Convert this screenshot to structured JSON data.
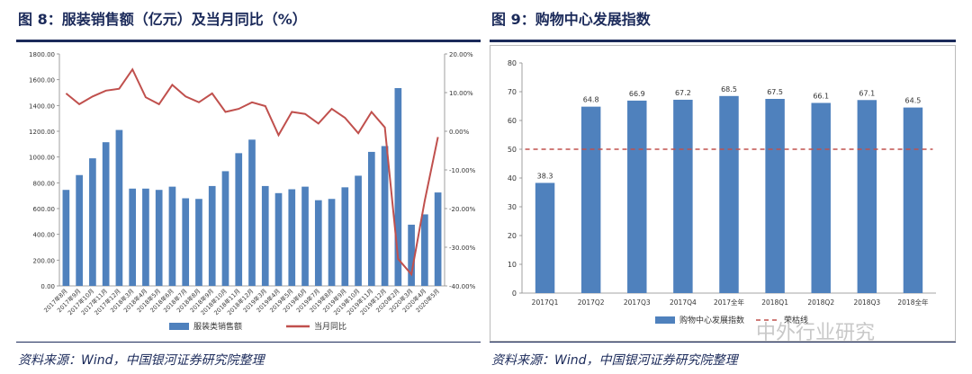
{
  "left": {
    "title": "图 8：服装销售额（亿元）及当月同比（%）",
    "source": "资料来源：Wind，中国银河证券研究院整理"
  },
  "right": {
    "title": "图 9：购物中心发展指数",
    "source": "资料来源：Wind，中国银河证券研究院整理"
  },
  "watermark": "中外行业研究",
  "colors": {
    "bar": "#4f81bd",
    "line": "#c0504d",
    "rule": "#1b2a5a",
    "dashed": "#c0504d"
  },
  "chart_data": [
    {
      "type": "bar+line",
      "title": "图 8：服装销售额（亿元）及当月同比（%）",
      "categories": [
        "2017年8月",
        "2017年9月",
        "2017年10月",
        "2017年11月",
        "2017年12月",
        "2018年3月",
        "2018年4月",
        "2018年5月",
        "2018年6月",
        "2018年7月",
        "2018年8月",
        "2018年9月",
        "2018年10月",
        "2018年11月",
        "2018年12月",
        "2019年3月",
        "2019年4月",
        "2019年5月",
        "2019年6月",
        "2019年7月",
        "2019年8月",
        "2019年9月",
        "2019年10月",
        "2019年11月",
        "2019年12月",
        "2020年2月",
        "2020年3月",
        "2020年4月",
        "2020年5月"
      ],
      "series": [
        {
          "name": "服装类销售额",
          "type": "bar",
          "axis": "left",
          "values": [
            745,
            860,
            990,
            1115,
            1210,
            755,
            755,
            745,
            770,
            680,
            675,
            775,
            890,
            1030,
            1135,
            775,
            720,
            750,
            770,
            665,
            675,
            765,
            855,
            1040,
            1085,
            1535,
            475,
            555,
            725
          ]
        },
        {
          "name": "当月同比",
          "type": "line",
          "axis": "right",
          "values": [
            9.8,
            7.0,
            9.0,
            10.5,
            11.0,
            16.0,
            8.8,
            7.0,
            12.0,
            9.0,
            7.5,
            9.8,
            5.0,
            5.8,
            7.5,
            6.5,
            -1.0,
            5.0,
            4.5,
            2.0,
            5.8,
            3.5,
            -0.5,
            5.0,
            1.0,
            -33.0,
            -37.0,
            -18.0,
            -1.5
          ]
        }
      ],
      "y_left": {
        "min": 0,
        "max": 1800,
        "ticks": [
          "0.00",
          "200.00",
          "400.00",
          "600.00",
          "800.00",
          "1000.00",
          "1200.00",
          "1400.00",
          "1600.00",
          "1800.00"
        ]
      },
      "y_right": {
        "min": -40,
        "max": 20,
        "ticks": [
          "-40.00%",
          "-30.00%",
          "-20.00%",
          "-10.00%",
          "0.00%",
          "10.00%",
          "20.00%"
        ]
      },
      "legend": [
        "服装类销售额",
        "当月同比"
      ],
      "legend_position": "bottom"
    },
    {
      "type": "bar",
      "title": "图 9：购物中心发展指数",
      "categories": [
        "2017Q1",
        "2017Q2",
        "2017Q3",
        "2017Q4",
        "2017全年",
        "2018Q1",
        "2018Q2",
        "2018Q3",
        "2018全年"
      ],
      "series": [
        {
          "name": "购物中心发展指数",
          "values": [
            38.3,
            64.8,
            66.9,
            67.2,
            68.5,
            67.5,
            66.1,
            67.1,
            64.5
          ]
        }
      ],
      "value_labels": [
        "38.3",
        "64.8",
        "66.9",
        "67.2",
        "68.5",
        "67.5",
        "66.1",
        "67.1",
        "64.5"
      ],
      "reference_line": {
        "name": "荣枯线",
        "value": 50
      },
      "ylim": [
        0,
        80
      ],
      "y_ticks": [
        "0",
        "10",
        "20",
        "30",
        "40",
        "50",
        "60",
        "70",
        "80"
      ],
      "legend": [
        "购物中心发展指数",
        "荣枯线"
      ],
      "legend_position": "bottom"
    }
  ]
}
